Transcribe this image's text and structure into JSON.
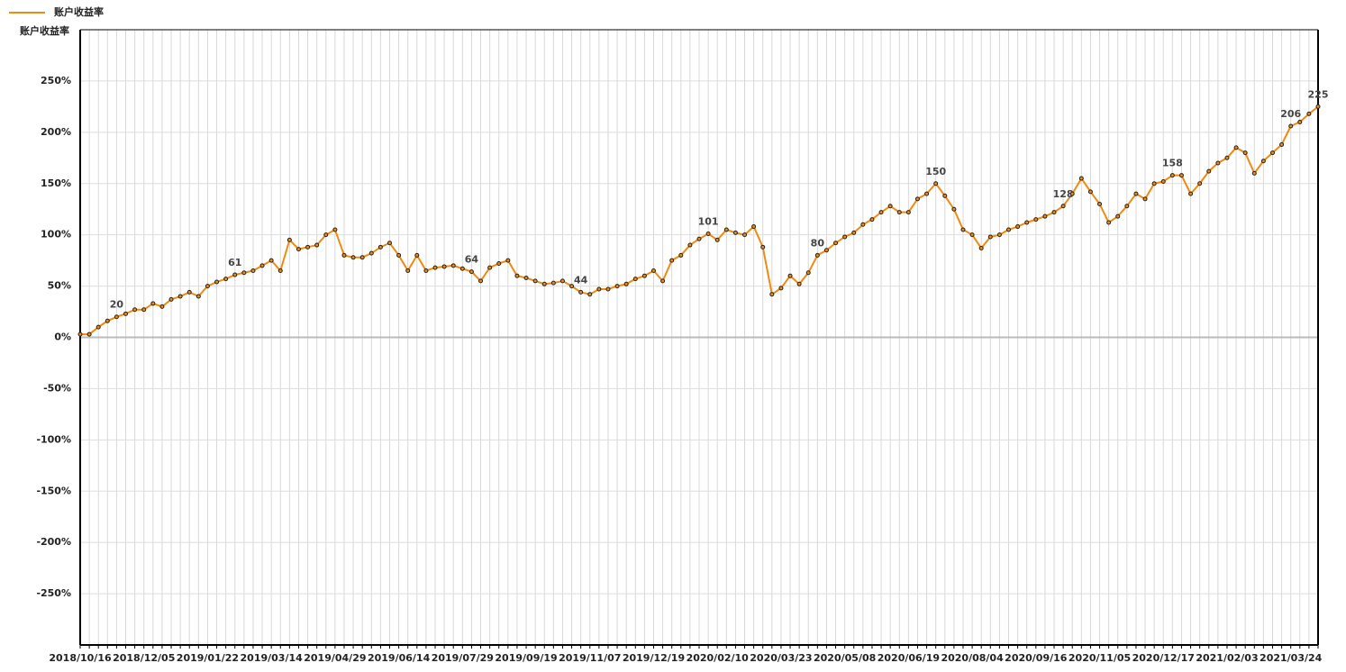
{
  "chart_data": {
    "type": "line",
    "y_label": "账户收益率",
    "legend_position": "top-left",
    "categories": [
      "2018/10/16",
      null,
      null,
      null,
      null,
      null,
      null,
      "2018/12/05",
      null,
      null,
      null,
      null,
      null,
      null,
      "2019/01/22",
      null,
      null,
      null,
      null,
      null,
      null,
      "2019/03/14",
      null,
      null,
      null,
      null,
      null,
      null,
      "2019/04/29",
      null,
      null,
      null,
      null,
      null,
      null,
      "2019/06/14",
      null,
      null,
      null,
      null,
      null,
      null,
      "2019/07/29",
      null,
      null,
      null,
      null,
      null,
      null,
      "2019/09/19",
      null,
      null,
      null,
      null,
      null,
      null,
      "2019/11/07",
      null,
      null,
      null,
      null,
      null,
      null,
      "2019/12/19",
      null,
      null,
      null,
      null,
      null,
      null,
      "2020/02/10",
      null,
      null,
      null,
      null,
      null,
      null,
      "2020/03/23",
      null,
      null,
      null,
      null,
      null,
      null,
      "2020/05/08",
      null,
      null,
      null,
      null,
      null,
      null,
      "2020/06/19",
      null,
      null,
      null,
      null,
      null,
      null,
      "2020/08/04",
      null,
      null,
      null,
      null,
      null,
      null,
      "2020/09/16",
      null,
      null,
      null,
      null,
      null,
      null,
      "2020/11/05",
      null,
      null,
      null,
      null,
      null,
      null,
      "2020/12/17",
      null,
      null,
      null,
      null,
      null,
      null,
      "2021/02/03",
      null,
      null,
      null,
      null,
      null,
      null,
      "2021/03/24",
      null,
      null,
      null
    ],
    "series": [
      {
        "name": "账户收益率",
        "color": "#f08a10",
        "values": [
          3,
          3,
          10,
          16,
          20,
          23,
          27,
          27,
          33,
          30,
          37,
          40,
          44,
          40,
          50,
          54,
          57,
          61,
          63,
          65,
          70,
          75,
          65,
          95,
          86,
          88,
          90,
          100,
          105,
          80,
          78,
          78,
          82,
          88,
          92,
          80,
          65,
          80,
          65,
          68,
          69,
          70,
          67,
          64,
          55,
          68,
          72,
          75,
          60,
          58,
          55,
          52,
          53,
          55,
          50,
          44,
          42,
          47,
          47,
          50,
          52,
          57,
          60,
          65,
          55,
          75,
          80,
          90,
          96,
          101,
          95,
          105,
          102,
          100,
          108,
          88,
          42,
          48,
          60,
          52,
          63,
          80,
          85,
          92,
          98,
          102,
          110,
          115,
          122,
          128,
          122,
          122,
          135,
          140,
          150,
          138,
          125,
          105,
          100,
          87,
          98,
          100,
          105,
          108,
          112,
          115,
          118,
          122,
          128,
          140,
          155,
          142,
          130,
          112,
          118,
          128,
          140,
          135,
          150,
          152,
          158,
          158,
          140,
          150,
          162,
          170,
          175,
          185,
          180,
          160,
          172,
          180,
          188,
          206,
          210,
          218,
          225
        ],
        "value_labels": [
          null,
          null,
          null,
          null,
          "20",
          null,
          null,
          null,
          null,
          null,
          null,
          null,
          null,
          null,
          null,
          null,
          null,
          "61",
          null,
          null,
          null,
          null,
          null,
          null,
          null,
          null,
          null,
          null,
          null,
          null,
          null,
          null,
          null,
          null,
          null,
          null,
          null,
          null,
          null,
          null,
          null,
          null,
          null,
          "64",
          null,
          null,
          null,
          null,
          null,
          null,
          null,
          null,
          null,
          null,
          null,
          "44",
          null,
          null,
          null,
          null,
          null,
          null,
          null,
          null,
          null,
          null,
          null,
          null,
          null,
          "101",
          null,
          null,
          null,
          null,
          null,
          null,
          null,
          null,
          null,
          null,
          null,
          "80",
          null,
          null,
          null,
          null,
          null,
          null,
          null,
          null,
          null,
          null,
          null,
          null,
          "150",
          null,
          null,
          null,
          null,
          null,
          null,
          null,
          null,
          null,
          null,
          null,
          null,
          null,
          "128",
          null,
          null,
          null,
          null,
          null,
          null,
          null,
          null,
          null,
          null,
          null,
          "158",
          null,
          null,
          null,
          null,
          null,
          null,
          null,
          null,
          null,
          null,
          null,
          null,
          "206",
          null,
          null,
          "225"
        ]
      }
    ],
    "ylim": [
      -300,
      300
    ],
    "yticks": [
      {
        "value": -250,
        "label": "-250%"
      },
      {
        "value": -200,
        "label": "-200%"
      },
      {
        "value": -150,
        "label": "-150%"
      },
      {
        "value": -100,
        "label": "-100%"
      },
      {
        "value": -50,
        "label": "-50%"
      },
      {
        "value": 0,
        "label": "0%"
      },
      {
        "value": 50,
        "label": "50%"
      },
      {
        "value": 100,
        "label": "100%"
      },
      {
        "value": 150,
        "label": "150%"
      },
      {
        "value": 200,
        "label": "200%"
      },
      {
        "value": 250,
        "label": "250%"
      }
    ],
    "grid": true
  }
}
